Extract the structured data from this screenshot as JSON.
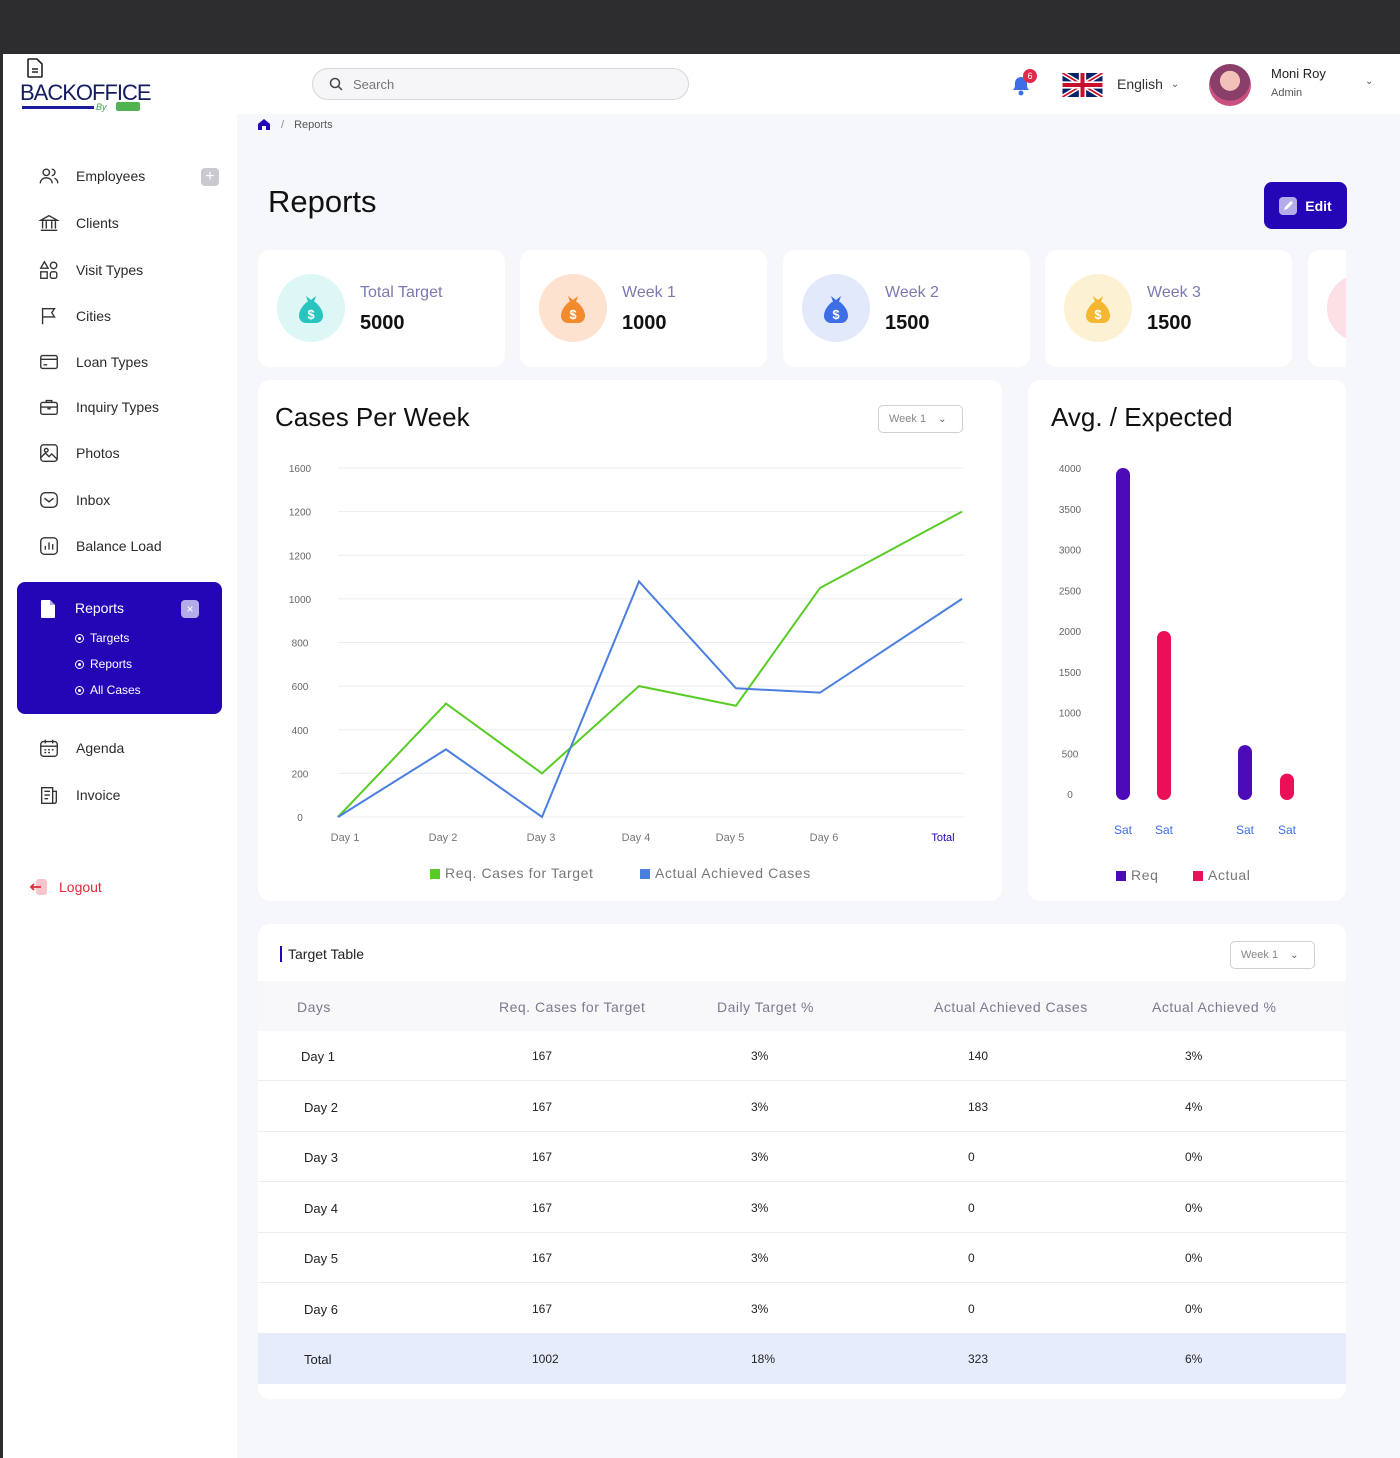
{
  "brand": {
    "word": "BACKOFFICE",
    "by": "By"
  },
  "sidebar": {
    "items": [
      {
        "label": "Employees",
        "icon": "users-icon"
      },
      {
        "label": "Clients",
        "icon": "bank-icon"
      },
      {
        "label": "Visit Types",
        "icon": "shapes-icon"
      },
      {
        "label": "Cities",
        "icon": "flag-icon"
      },
      {
        "label": "Loan Types",
        "icon": "card-icon"
      },
      {
        "label": "Inquiry Types",
        "icon": "briefcase-icon"
      },
      {
        "label": "Photos",
        "icon": "image-icon"
      },
      {
        "label": "Inbox",
        "icon": "mail-icon"
      },
      {
        "label": "Balance Load",
        "icon": "bar-chart-icon"
      }
    ],
    "active": {
      "label": "Reports",
      "close": "×",
      "subitems": [
        "Targets",
        "Reports",
        "All Cases"
      ]
    },
    "bottom_items": [
      {
        "label": "Agenda",
        "icon": "calendar-icon"
      },
      {
        "label": "Invoice",
        "icon": "invoice-icon"
      }
    ],
    "add": "+",
    "logout": "Logout"
  },
  "header": {
    "search_placeholder": "Search",
    "notifications": "6",
    "language": "English",
    "user": {
      "name": "Moni Roy",
      "role": "Admin"
    }
  },
  "breadcrumb": {
    "current": "Reports"
  },
  "page": {
    "title": "Reports",
    "edit_label": "Edit"
  },
  "stats": [
    {
      "label": "Total Target",
      "value": "5000",
      "color": "#27c5bd",
      "bg": "#dcf7f6"
    },
    {
      "label": "Week 1",
      "value": "1000",
      "color": "#f28a2e",
      "bg": "#fde3cf"
    },
    {
      "label": "Week 2",
      "value": "1500",
      "color": "#3d6ee6",
      "bg": "#e2e9fb"
    },
    {
      "label": "Week 3",
      "value": "1500",
      "color": "#f5b732",
      "bg": "#fdf1d3"
    }
  ],
  "cases_chart": {
    "title": "Cases Per Week",
    "select": "Week 1"
  },
  "avg_chart": {
    "title": "Avg. / Expected"
  },
  "chart_data": [
    {
      "type": "line",
      "title": "Cases Per Week",
      "categories": [
        "Day 1",
        "Day 2",
        "Day 3",
        "Day 4",
        "Day 5",
        "Day 6",
        "Total"
      ],
      "y_ticks": [
        "0",
        "200",
        "400",
        "600",
        "800",
        "1000",
        "1200",
        "1200",
        "1600"
      ],
      "ylim": [
        0,
        1600
      ],
      "grid": true,
      "legend": "bottom",
      "series": [
        {
          "name": "Req. Cases for Target",
          "color": "#58cc24",
          "values": [
            0,
            520,
            200,
            600,
            510,
            1050,
            1400
          ]
        },
        {
          "name": "Actual Achieved Cases",
          "color": "#4a7fe0",
          "values": [
            0,
            310,
            0,
            1080,
            590,
            570,
            1000
          ]
        }
      ]
    },
    {
      "type": "bar",
      "title": "Avg. / Expected",
      "categories": [
        "Sat",
        "Sat",
        "Sat",
        "Sat"
      ],
      "y_ticks": [
        "0",
        "500",
        "1000",
        "1500",
        "2000",
        "2500",
        "3000",
        "3500",
        "4000"
      ],
      "ylim": [
        0,
        4000
      ],
      "legend": "bottom",
      "series": [
        {
          "name": "Req",
          "color": "#4d0ab8",
          "values": [
            4000,
            null,
            600,
            null
          ]
        },
        {
          "name": "Actual",
          "color": "#ea0f57",
          "values": [
            null,
            2000,
            null,
            250
          ]
        }
      ]
    }
  ],
  "table": {
    "title": "Target Table",
    "select": "Week 1",
    "headers": [
      "Days",
      "Req. Cases for Target",
      "Daily Target %",
      "Actual Achieved Cases",
      "Actual Achieved %"
    ],
    "rows": [
      [
        "Day 1",
        "167",
        "3%",
        "140",
        "3%"
      ],
      [
        "Day 2",
        "167",
        "3%",
        "183",
        "4%"
      ],
      [
        "Day 3",
        "167",
        "3%",
        "0",
        "0%"
      ],
      [
        "Day 4",
        "167",
        "3%",
        "0",
        "0%"
      ],
      [
        "Day 5",
        "167",
        "3%",
        "0",
        "0%"
      ],
      [
        "Day 6",
        "167",
        "3%",
        "0",
        "0%"
      ]
    ],
    "total": [
      "Total",
      "1002",
      "18%",
      "323",
      "6%"
    ]
  }
}
